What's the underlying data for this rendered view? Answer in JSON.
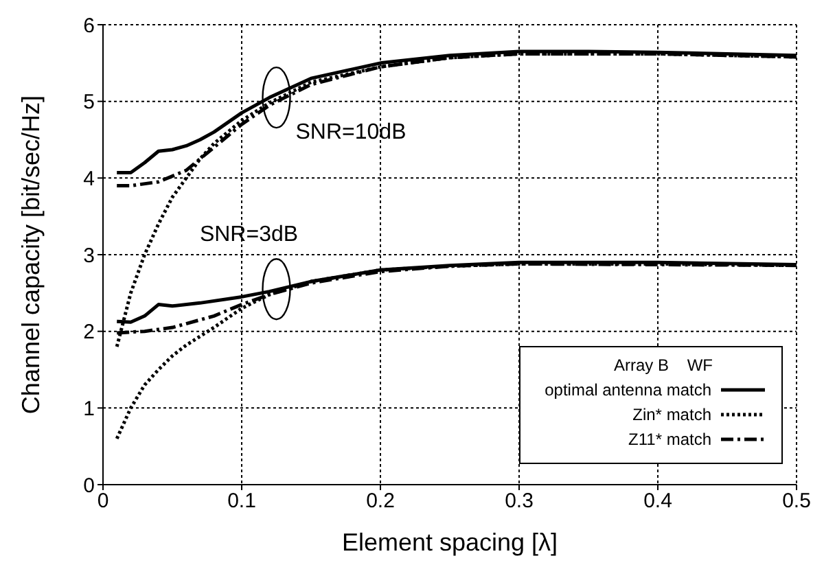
{
  "chart_data": {
    "type": "line",
    "xlabel": "Element spacing [λ]",
    "ylabel": "Channel capacity [bit/sec/Hz]",
    "legend_title": "Array B    WF",
    "xlim": [
      0,
      0.5
    ],
    "xticks": [
      0,
      0.1,
      0.2,
      0.3,
      0.4,
      0.5
    ],
    "ylim": [
      0,
      6
    ],
    "yticks": [
      0,
      1,
      2,
      3,
      4,
      5,
      6
    ],
    "grid": true,
    "legend": "bottom right",
    "marker": "none",
    "annotations": [
      {
        "text": "SNR=10dB",
        "x": 0.125,
        "y": 5.05
      },
      {
        "text": "SNR=3dB",
        "x": 0.125,
        "y": 2.55
      }
    ],
    "series": [
      {
        "name": "optimal antenna match",
        "color": "#000000",
        "line_style": "solid",
        "x": [
          0.01,
          0.02,
          0.03,
          0.04,
          0.05,
          0.06,
          0.07,
          0.08,
          0.1,
          0.12,
          0.15,
          0.2,
          0.25,
          0.3,
          0.35,
          0.4,
          0.45,
          0.5
        ],
        "values": [
          4.07,
          4.07,
          4.2,
          4.35,
          4.37,
          4.42,
          4.5,
          4.6,
          4.85,
          5.05,
          5.3,
          5.5,
          5.6,
          5.65,
          5.65,
          5.64,
          5.62,
          5.6
        ]
      },
      {
        "name": "Zin* match",
        "color": "#000000",
        "line_style": "dotted",
        "x": [
          0.01,
          0.02,
          0.03,
          0.04,
          0.05,
          0.06,
          0.07,
          0.08,
          0.1,
          0.12,
          0.15,
          0.2,
          0.25,
          0.3,
          0.4,
          0.5
        ],
        "values": [
          1.8,
          2.5,
          3.0,
          3.4,
          3.75,
          4.0,
          4.25,
          4.45,
          4.75,
          4.98,
          5.25,
          5.45,
          5.57,
          5.62,
          5.62,
          5.58
        ]
      },
      {
        "name": "Z11* match",
        "color": "#000000",
        "line_style": "dashed",
        "x": [
          0.01,
          0.02,
          0.04,
          0.06,
          0.08,
          0.1,
          0.12,
          0.15,
          0.2,
          0.25,
          0.3,
          0.4,
          0.5
        ],
        "values": [
          3.9,
          3.9,
          3.95,
          4.1,
          4.4,
          4.7,
          4.95,
          5.22,
          5.45,
          5.57,
          5.62,
          5.62,
          5.58
        ]
      },
      {
        "color": "#000000",
        "line_style": "solid",
        "x": [
          0.01,
          0.02,
          0.03,
          0.04,
          0.05,
          0.07,
          0.1,
          0.12,
          0.15,
          0.2,
          0.25,
          0.3,
          0.4,
          0.5
        ],
        "values": [
          2.13,
          2.12,
          2.2,
          2.35,
          2.33,
          2.37,
          2.45,
          2.52,
          2.65,
          2.8,
          2.86,
          2.9,
          2.9,
          2.87
        ]
      },
      {
        "color": "#000000",
        "line_style": "dotted",
        "x": [
          0.01,
          0.02,
          0.03,
          0.04,
          0.05,
          0.06,
          0.08,
          0.1,
          0.12,
          0.15,
          0.2,
          0.25,
          0.3,
          0.4,
          0.5
        ],
        "values": [
          0.6,
          1.0,
          1.3,
          1.5,
          1.68,
          1.82,
          2.05,
          2.3,
          2.48,
          2.65,
          2.8,
          2.85,
          2.88,
          2.88,
          2.86
        ]
      },
      {
        "color": "#000000",
        "line_style": "dashed",
        "x": [
          0.01,
          0.03,
          0.05,
          0.08,
          0.1,
          0.12,
          0.15,
          0.2,
          0.25,
          0.3,
          0.5
        ],
        "values": [
          1.98,
          2.0,
          2.05,
          2.2,
          2.35,
          2.48,
          2.63,
          2.78,
          2.85,
          2.88,
          2.86
        ]
      }
    ]
  }
}
